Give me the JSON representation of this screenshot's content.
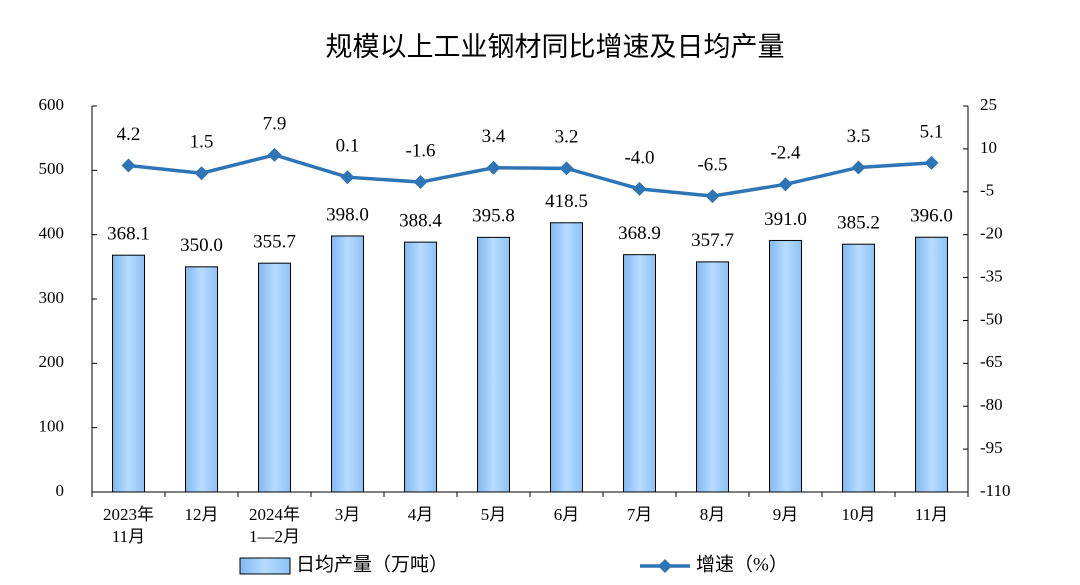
{
  "chart_data": {
    "type": "bar-line",
    "title": "规模以上工业钢材同比增速及日均产量",
    "categories": [
      "2023年\n11月",
      "12月",
      "2024年\n1—2月",
      "3月",
      "4月",
      "5月",
      "6月",
      "7月",
      "8月",
      "9月",
      "10月",
      "11月"
    ],
    "series": [
      {
        "name": "日均产量（万吨）",
        "type": "bar",
        "color": "#9fcfff",
        "values": [
          368.1,
          350.0,
          355.7,
          398.0,
          388.4,
          395.8,
          418.5,
          368.9,
          357.7,
          391.0,
          385.2,
          396.0
        ],
        "value_labels": [
          "368.1",
          "350.0",
          "355.7",
          "398.0",
          "388.4",
          "395.8",
          "418.5",
          "368.9",
          "357.7",
          "391.0",
          "385.2",
          "396.0"
        ]
      },
      {
        "name": "增速（%）",
        "type": "line",
        "axis": "y2",
        "color": "#2e75b6",
        "values": [
          4.2,
          1.5,
          7.9,
          0.1,
          -1.6,
          3.4,
          3.2,
          -4.0,
          -6.5,
          -2.4,
          3.5,
          5.1
        ],
        "value_labels": [
          "4.2",
          "1.5",
          "7.9",
          "0.1",
          "-1.6",
          "3.4",
          "3.2",
          "-4.0",
          "-6.5",
          "-2.4",
          "3.5",
          "5.1"
        ]
      }
    ],
    "ylim": [
      0,
      600
    ],
    "yticks": [
      0,
      100,
      200,
      300,
      400,
      500,
      600
    ],
    "y2lim": [
      -110,
      25
    ],
    "y2ticks": [
      -110,
      -95,
      -80,
      -65,
      -50,
      -35,
      -20,
      -5,
      10,
      25
    ]
  }
}
